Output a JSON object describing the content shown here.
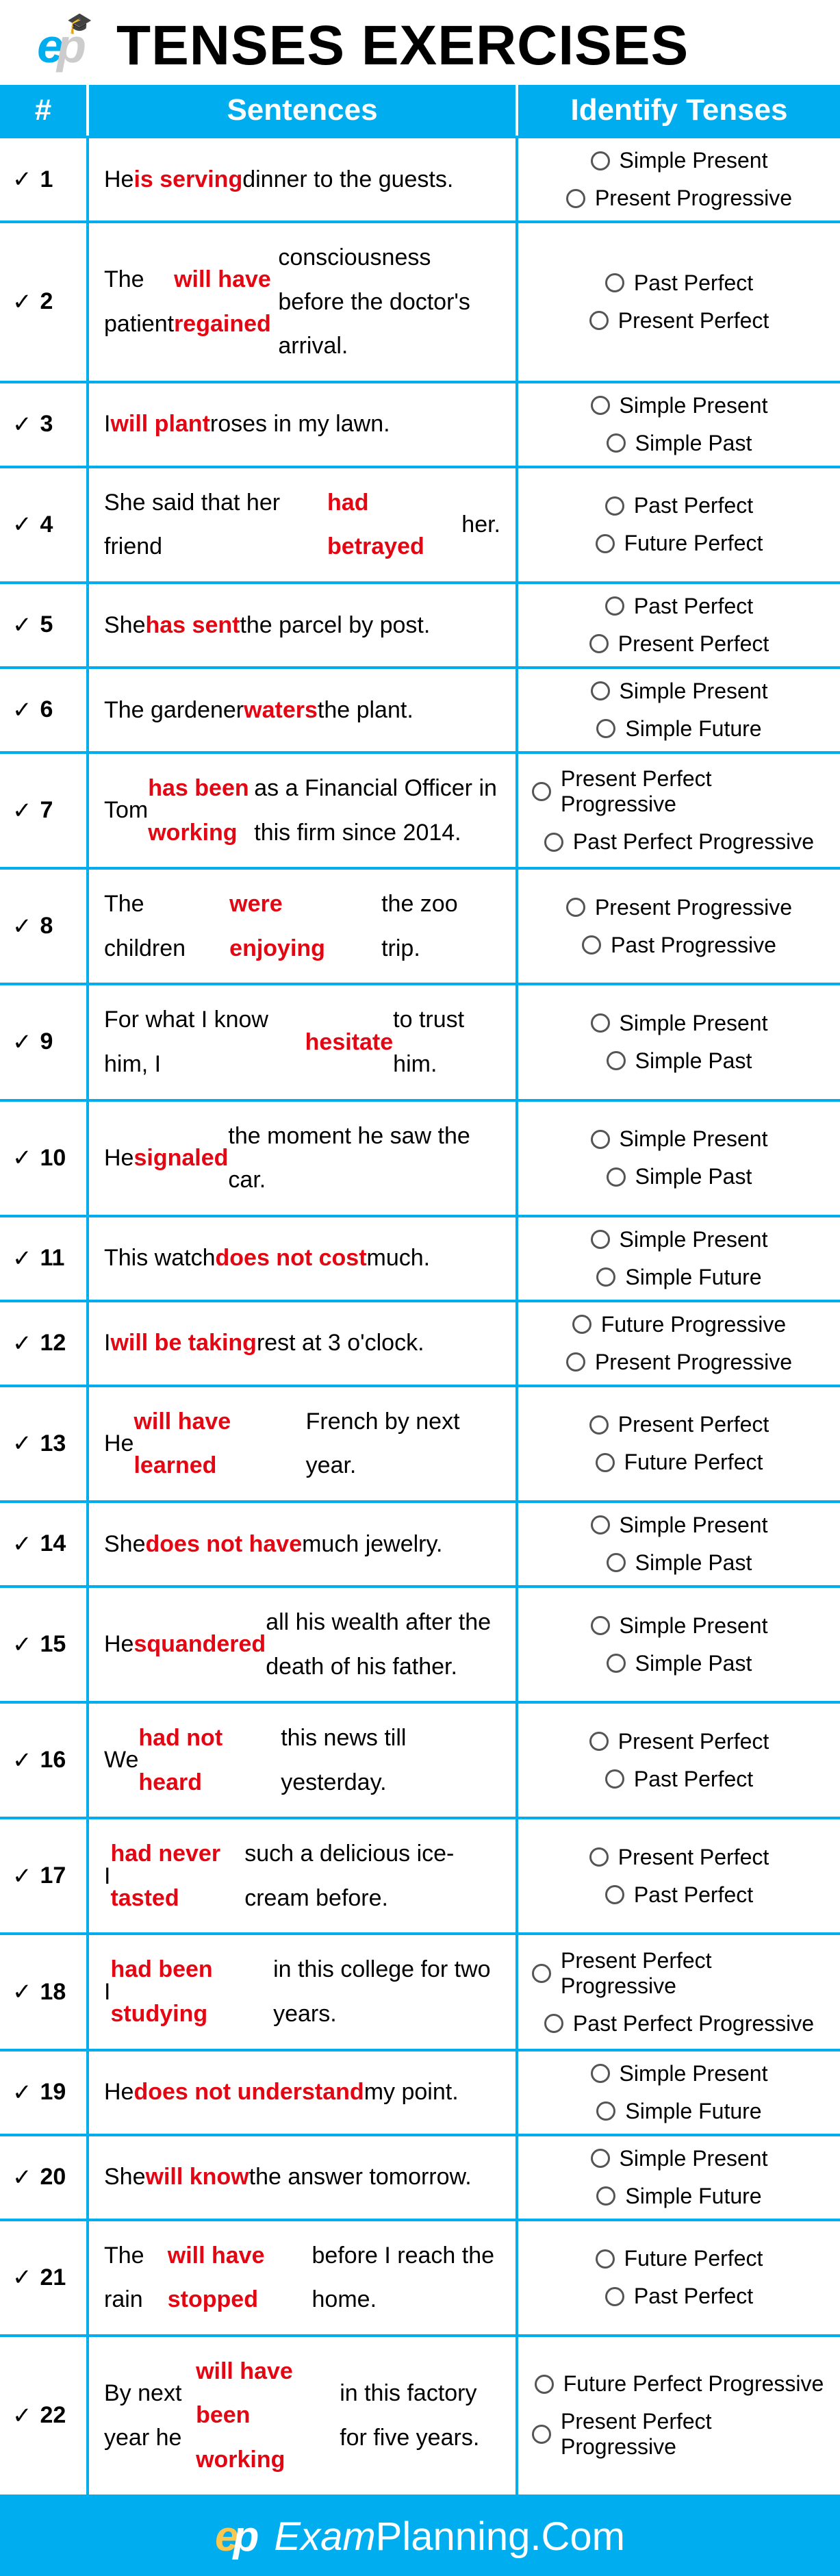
{
  "title": "TENSES EXERCISES",
  "columns": {
    "num": "#",
    "sentences": "Sentences",
    "identify": "Identify Tenses"
  },
  "colors": {
    "accent": "#00aeef",
    "highlight": "#e30613",
    "white": "#ffffff",
    "black": "#000000",
    "logo_gold": "#f9c74f"
  },
  "footer": {
    "brand_e": "e",
    "brand_p": "p",
    "exam": "Exam",
    "planning": "Planning.Com"
  },
  "rows": [
    {
      "n": "1",
      "pre": "He ",
      "hl": "is serving",
      "post": " dinner to the guests.",
      "a": "Simple Present",
      "b": "Present Progressive"
    },
    {
      "n": "2",
      "pre": "The patient ",
      "hl": "will have regained",
      "post": " consciousness before the doctor's arrival.",
      "a": "Past Perfect",
      "b": "Present Perfect"
    },
    {
      "n": "3",
      "pre": "I ",
      "hl": "will plant",
      "post": " roses in my lawn.",
      "a": "Simple Present",
      "b": "Simple Past"
    },
    {
      "n": "4",
      "pre": "She said that her friend ",
      "hl": "had betrayed",
      "post": " her.",
      "a": "Past Perfect",
      "b": "Future Perfect"
    },
    {
      "n": "5",
      "pre": "She ",
      "hl": "has sent",
      "post": " the parcel by post.",
      "a": "Past Perfect",
      "b": "Present Perfect"
    },
    {
      "n": "6",
      "pre": "The gardener ",
      "hl": "waters",
      "post": " the plant.",
      "a": "Simple Present",
      "b": "Simple Future"
    },
    {
      "n": "7",
      "pre": "Tom ",
      "hl": "has been working",
      "post": " as a Financial Officer in this firm since 2014.",
      "a": "Present Perfect Progressive",
      "b": "Past Perfect Progressive"
    },
    {
      "n": "8",
      "pre": "The children ",
      "hl": "were enjoying",
      "post": " the zoo trip.",
      "a": "Present Progressive",
      "b": "Past Progressive"
    },
    {
      "n": "9",
      "pre": "For what I know him, I ",
      "hl": "hesitate",
      "post": " to trust him.",
      "a": "Simple Present",
      "b": "Simple Past"
    },
    {
      "n": "10",
      "pre": "He ",
      "hl": "signaled",
      "post": " the moment he saw the car.",
      "a": "Simple Present",
      "b": "Simple Past"
    },
    {
      "n": "11",
      "pre": "This watch ",
      "hl": "does not cost",
      "post": " much.",
      "a": "Simple Present",
      "b": "Simple Future"
    },
    {
      "n": "12",
      "pre": "I ",
      "hl": "will be taking",
      "post": " rest at 3 o'clock.",
      "a": "Future Progressive",
      "b": "Present Progressive"
    },
    {
      "n": "13",
      "pre": "He ",
      "hl": "will have learned",
      "post": " French by next year.",
      "a": "Present Perfect",
      "b": "Future Perfect"
    },
    {
      "n": "14",
      "pre": "She ",
      "hl": "does not have",
      "post": " much jewelry.",
      "a": "Simple Present",
      "b": "Simple Past"
    },
    {
      "n": "15",
      "pre": "He ",
      "hl": "squandered",
      "post": " all his wealth after the death of his father.",
      "a": "Simple Present",
      "b": "Simple Past"
    },
    {
      "n": "16",
      "pre": "We ",
      "hl": "had not heard",
      "post": " this news till yesterday.",
      "a": "Present Perfect",
      "b": "Past Perfect"
    },
    {
      "n": "17",
      "pre": "I ",
      "hl": "had never tasted",
      "post": " such a delicious ice-cream before.",
      "a": "Present Perfect",
      "b": "Past Perfect"
    },
    {
      "n": "18",
      "pre": "I ",
      "hl": "had been studying",
      "post": " in this college for two years.",
      "a": "Present Perfect Progressive",
      "b": "Past Perfect Progressive"
    },
    {
      "n": "19",
      "pre": "He ",
      "hl": "does not understand",
      "post": " my point.",
      "a": "Simple Present",
      "b": "Simple Future"
    },
    {
      "n": "20",
      "pre": "She ",
      "hl": "will know",
      "post": " the answer tomorrow.",
      "a": "Simple Present",
      "b": "Simple Future"
    },
    {
      "n": "21",
      "pre": "The rain ",
      "hl": "will have stopped",
      "post": " before I reach the home.",
      "a": "Future Perfect",
      "b": "Past Perfect"
    },
    {
      "n": "22",
      "pre": "By next year he ",
      "hl": "will have been working",
      "post": " in this factory for five years.",
      "a": "Future Perfect Progressive",
      "b": "Present Perfect Progressive"
    }
  ]
}
